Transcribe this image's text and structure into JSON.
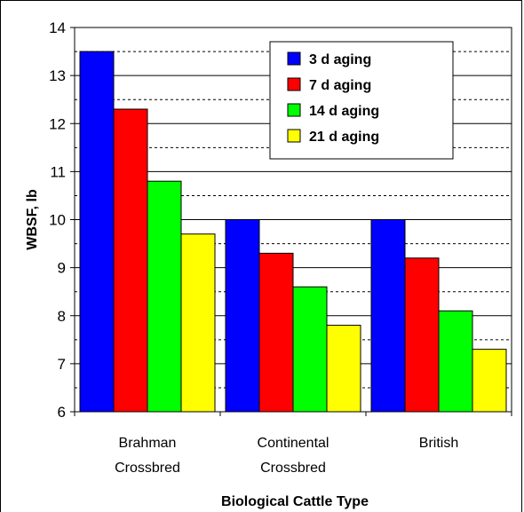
{
  "chart_data": {
    "type": "bar",
    "title": "",
    "xlabel": "Biological Cattle Type",
    "ylabel": "WBSF, lb",
    "ylim": [
      6,
      14
    ],
    "yticks": [
      6,
      7,
      8,
      9,
      10,
      11,
      12,
      13,
      14
    ],
    "categories": [
      [
        "Brahman",
        "Crossbred"
      ],
      [
        "Continental",
        "Crossbred"
      ],
      [
        "British"
      ]
    ],
    "series": [
      {
        "name": "3 d aging",
        "color": "#0000ff",
        "values": [
          13.5,
          10.0,
          10.0
        ]
      },
      {
        "name": "7 d aging",
        "color": "#ff0000",
        "values": [
          12.3,
          9.3,
          9.2
        ]
      },
      {
        "name": "14 d aging",
        "color": "#00ff00",
        "values": [
          10.8,
          8.6,
          8.1
        ]
      },
      {
        "name": "21 d aging",
        "color": "#ffff00",
        "values": [
          9.7,
          7.8,
          7.3
        ]
      }
    ],
    "grid": "major solid, minor dotted",
    "legend_position": "top-right"
  }
}
